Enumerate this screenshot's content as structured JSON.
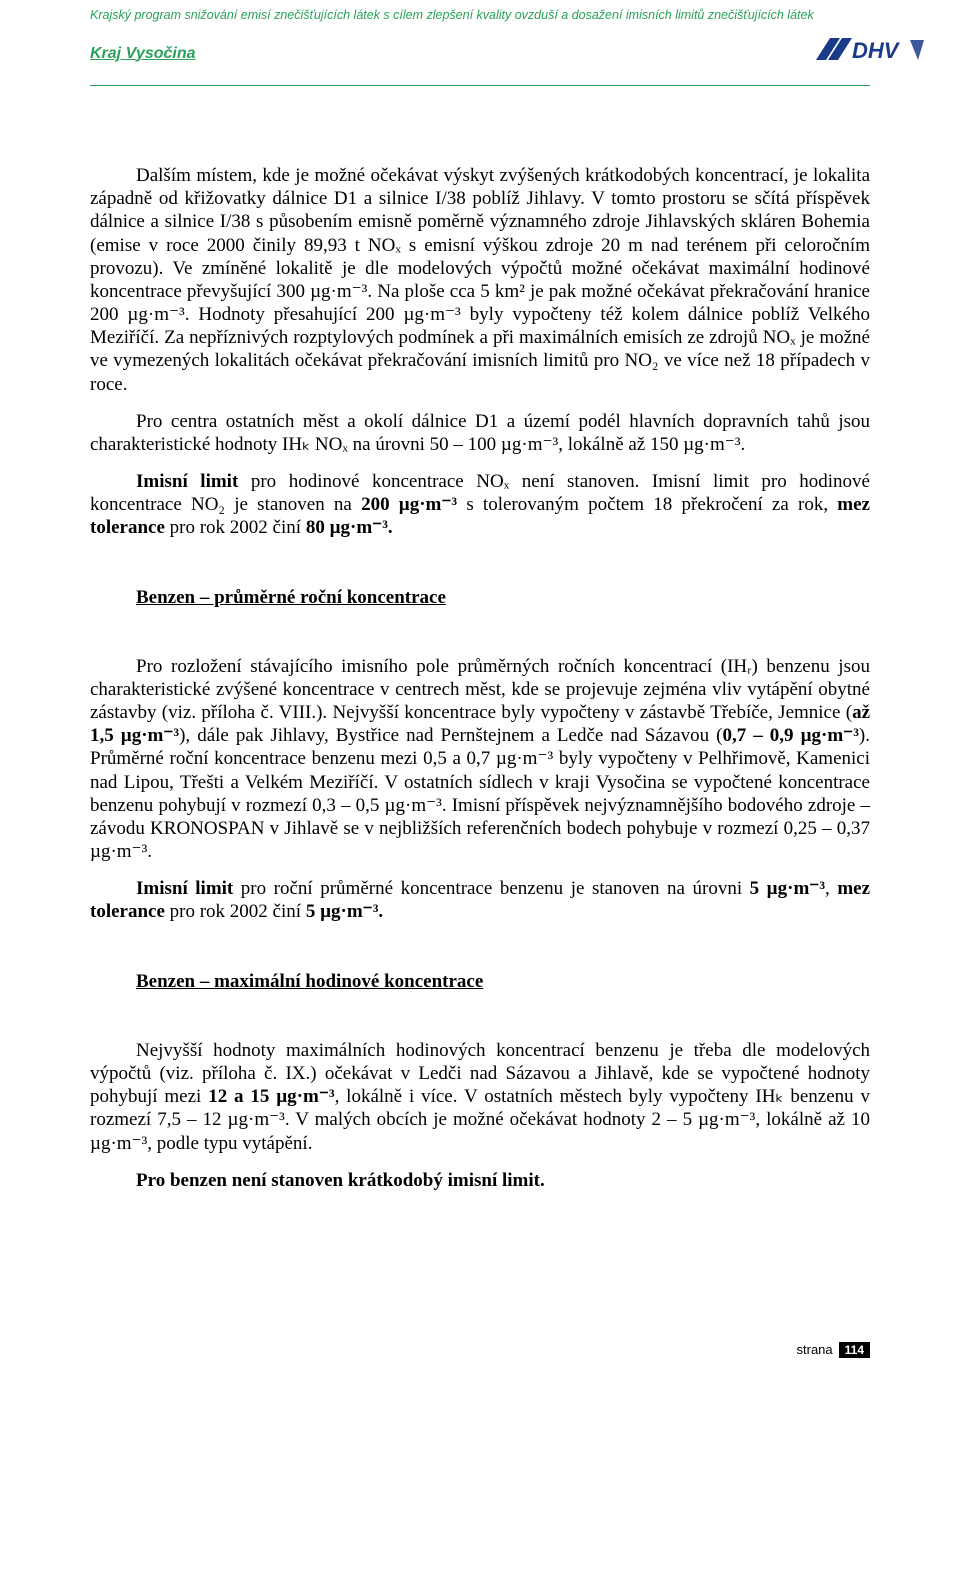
{
  "header": {
    "title_line": "Krajský program snižování emisí znečišťujících látek s cílem zlepšení kvality ovzduší a dosažení imisních limitů znečišťujících látek",
    "region": "Kraj Vysočina",
    "logo_text": "DHV",
    "header_color": "#2aa05a",
    "border_color": "#2aa05a"
  },
  "body": {
    "p1": "Dalším místem, kde je možné očekávat výskyt zvýšených krátkodobých koncentrací, je lokalita západně od křižovatky dálnice D1 a silnice I/38 poblíž Jihlavy. V tomto prostoru se sčítá příspěvek dálnice a silnice I/38 s působením emisně poměrně významného zdroje Jihlavských skláren Bohemia (emise v roce 2000 činily 89,93 t NOₓ s emisní výškou zdroje 20 m nad terénem při celoročním provozu). Ve zmíněné lokalitě je dle modelových výpočtů možné očekávat maximální hodinové koncentrace převyšující 300 µg·m⁻³. Na ploše cca 5 km² je pak možné očekávat překračování hranice 200 µg·m⁻³. Hodnoty přesahující 200 µg·m⁻³ byly vypočteny též kolem dálnice poblíž Velkého Meziříčí. Za nepříznivých rozptylových podmínek a při maximálních emisích ze zdrojů NOₓ je možné ve vymezených lokalitách očekávat překračování imisních limitů pro NO₂ ve více než 18 případech v roce.",
    "p2": "Pro centra ostatních měst a okolí dálnice D1 a území podél hlavních dopravních tahů jsou charakteristické hodnoty IHₖ NOₓ na úrovni 50 – 100 µg·m⁻³, lokálně až 150 µg·m⁻³.",
    "p3_html": "<b>Imisní limit</b> pro hodinové koncentrace NOₓ není stanoven. Imisní limit pro hodinové koncentrace NO₂ je stanoven na <b>200 µg·m⁻³</b> s tolerovaným počtem 18 překročení za rok, <b>mez tolerance</b> pro rok 2002 činí <b>80 µg·m⁻³.</b>",
    "h1": "Benzen – průměrné roční koncentrace",
    "p4_html": "Pro rozložení stávajícího imisního pole průměrných ročních koncentrací (IHᵣ) benzenu jsou charakteristické zvýšené koncentrace v centrech měst, kde se projevuje zejména vliv vytápění obytné zástavby (viz. příloha č. VIII.). Nejvyšší koncentrace byly vypočteny v zástavbě Třebíče, Jemnice (<b>až 1,5 µg·m⁻³</b>), dále pak Jihlavy, Bystřice nad Pernštejnem a Ledče nad Sázavou (<b>0,7 – 0,9 µg·m⁻³</b>). Průměrné roční koncentrace benzenu mezi 0,5 a 0,7 µg·m⁻³ byly vypočteny v Pelhřimově, Kamenici nad Lipou, Třešti a Velkém Meziříčí. V ostatních sídlech v kraji Vysočina se vypočtené koncentrace benzenu pohybují v rozmezí 0,3 – 0,5 µg·m⁻³. Imisní příspěvek nejvýznamnějšího bodového zdroje – závodu KRONOSPAN v Jihlavě se v nejbližších referenčních bodech pohybuje v rozmezí 0,25 – 0,37 µg·m⁻³.",
    "p5_html": "<b>Imisní limit</b> pro roční průměrné koncentrace benzenu je stanoven na úrovni <b>5 µg·m⁻³</b>, <b>mez tolerance</b> pro rok 2002 činí <b>5 µg·m⁻³.</b>",
    "h2": "Benzen – maximální hodinové koncentrace",
    "p6_html": "Nejvyšší hodnoty maximálních hodinových koncentrací benzenu je třeba dle modelových výpočtů (viz. příloha č. IX.) očekávat v Ledči nad Sázavou a Jihlavě, kde se vypočtené hodnoty pohybují mezi <b>12 a 15 µg·m⁻³</b>, lokálně i více. V ostatních městech byly vypočteny IHₖ benzenu v rozmezí 7,5 – 12 µg·m⁻³. V malých obcích je možné očekávat hodnoty 2 – 5 µg·m⁻³, lokálně až 10 µg·m⁻³, podle typu vytápění.",
    "p7": "Pro benzen není stanoven krátkodobý imisní limit."
  },
  "footer": {
    "label": "strana",
    "page_number": "114"
  },
  "colors": {
    "text": "#000000",
    "bg": "#ffffff",
    "accent": "#2aa05a",
    "logo_blue": "#1a3a8a"
  }
}
